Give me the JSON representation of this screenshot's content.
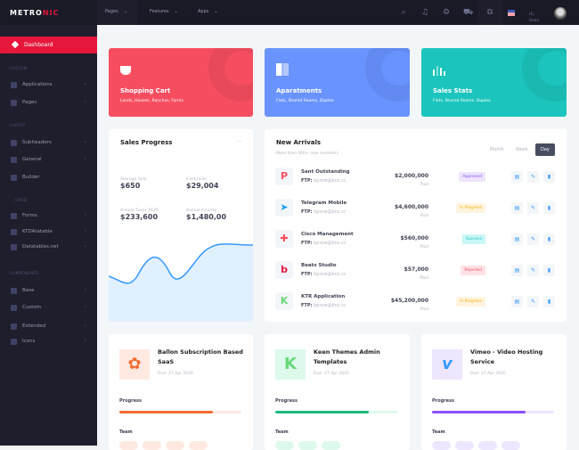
{
  "brand": {
    "logo_a": "METRO",
    "logo_b": "NIC"
  },
  "sidebar": {
    "dashboard": "Dashboard",
    "sections": [
      "CUSTOM",
      "LAYOUT",
      "CRUD",
      "COMPONENTS"
    ],
    "items": [
      {
        "label": "Applications"
      },
      {
        "label": "Pages"
      },
      {
        "label": "Subheaders"
      },
      {
        "label": "General"
      },
      {
        "label": "Builder"
      },
      {
        "label": "Forms"
      },
      {
        "label": "KTDAtatable"
      },
      {
        "label": "Datatables.net"
      },
      {
        "label": "Base"
      },
      {
        "label": "Custom"
      },
      {
        "label": "Extended"
      },
      {
        "label": "Icons"
      }
    ]
  },
  "topbar": {
    "nav": [
      "Pages",
      "Features",
      "Apps"
    ],
    "greeting": "Hi,",
    "user": "Sean",
    "icons": [
      "search-icon",
      "bell-icon",
      "gear-icon",
      "cart-icon",
      "layers-icon",
      "us-flag-icon"
    ]
  },
  "stats": [
    {
      "title": "Shopping Cart",
      "sub": "Lands, Houses, Ranchos, Farms",
      "color": "#f64e60"
    },
    {
      "title": "Aparatments",
      "sub": "Flats, Shared Rooms, Duplex",
      "color": "#6993ff"
    },
    {
      "title": "Sales Stats",
      "sub": "Flats, Shared Rooms, Duplex",
      "color": "#1bc5bd"
    }
  ],
  "sales": {
    "title": "Sales Progress",
    "metrics": [
      {
        "label": "Avarage Sale",
        "value": "$650"
      },
      {
        "label": "Comission",
        "value": "$29,004"
      },
      {
        "label": "Annual Taxes 2019",
        "value": "$233,600"
      },
      {
        "label": "Annual Income",
        "value": "$1,480,00"
      }
    ]
  },
  "arrivals": {
    "title": "New Arrivals",
    "subtitle": "More than 400+ new members",
    "tabs": [
      "Month",
      "Week",
      "Day"
    ],
    "active_tab": "Day",
    "ftp_label": "FTP:",
    "rows": [
      {
        "name": "Sant Outstanding",
        "ftp": "bprow@bnc.cc",
        "amount": "$2,000,000",
        "paid": "Paid",
        "status": "Approved",
        "status_color": "#8950fc",
        "status_bg": "#eee5ff",
        "logo_color": "#f64e60",
        "logo": "P"
      },
      {
        "name": "Telegram Mobile",
        "ftp": "bprow@bnc.cc",
        "amount": "$4,600,000",
        "paid": "Paid",
        "status": "In Progress",
        "status_color": "#ffa800",
        "status_bg": "#fff4de",
        "logo_color": "#1da1f2",
        "logo": "➤"
      },
      {
        "name": "Cisco Management",
        "ftp": "bprow@bnc.cc",
        "amount": "$560,000",
        "paid": "Paid",
        "status": "Success",
        "status_color": "#1bc5bd",
        "status_bg": "#c9f7f5",
        "logo_color": "#f64e60",
        "logo": "✚"
      },
      {
        "name": "Beats Studio",
        "ftp": "bprow@bnc.cc",
        "amount": "$57,000",
        "paid": "Paid",
        "status": "Rejected",
        "status_color": "#f64e60",
        "status_bg": "#ffe2e5",
        "logo_color": "#e5173b",
        "logo": "b"
      },
      {
        "name": "KTR Application",
        "ftp": "bprow@bnc.cc",
        "amount": "$45,200,000",
        "paid": "Paid",
        "status": "In Progress",
        "status_color": "#ffa800",
        "status_bg": "#fff4de",
        "logo_color": "#6bd778",
        "logo": "K"
      }
    ]
  },
  "projects": [
    {
      "title": "Ballon Subscription Based SaaS",
      "due": "Due: 27 Apr 2020",
      "progress_label": "Progress",
      "progress": 77,
      "team_label": "Team",
      "color": "#f26b2f",
      "light": "#ffe9e1",
      "avatars": 4
    },
    {
      "title": "Keen Themes Admin Templates",
      "due": "Due: 27 Apr 2020",
      "progress_label": "Progress",
      "progress": 77,
      "team_label": "Team",
      "color": "#1bb77b",
      "light": "#dcf9ec",
      "avatars": 3
    },
    {
      "title": "Vimeo - Video Hosting Service",
      "due": "Due: 27 Apr 2020",
      "progress_label": "Progress",
      "progress": 77,
      "team_label": "Team",
      "color": "#8950fc",
      "light": "#eee5ff",
      "avatars": 4
    }
  ]
}
